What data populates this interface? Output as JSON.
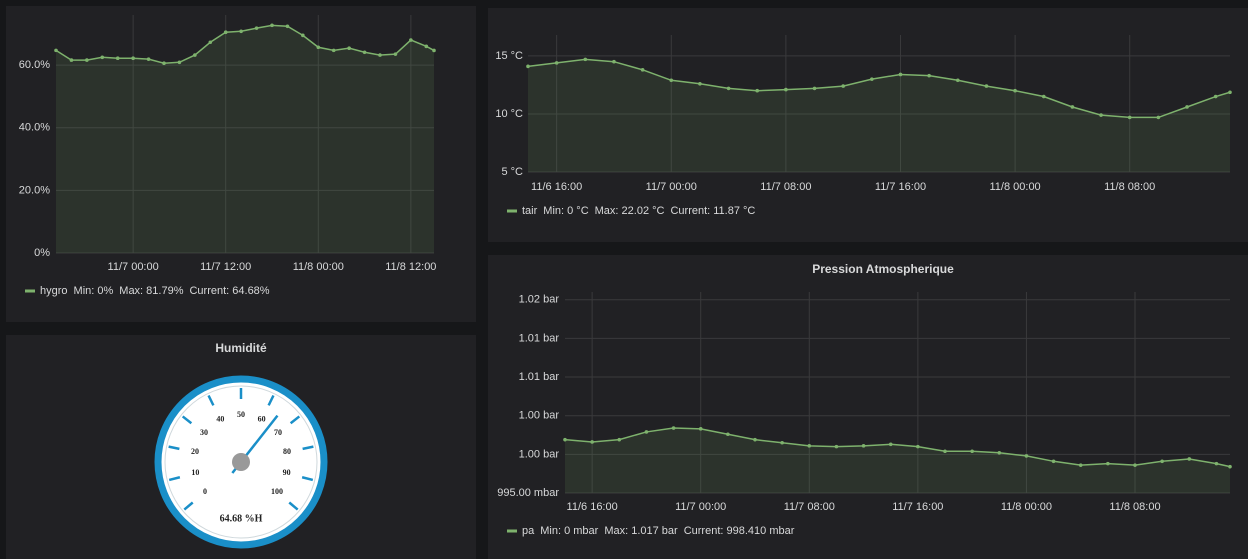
{
  "chart_data": [
    {
      "type": "line",
      "color": "#7eb26d",
      "x": [
        "11/6 14:00",
        "11/6 16:00",
        "11/6 18:00",
        "11/6 20:00",
        "11/6 22:00",
        "11/7 00:00",
        "11/7 02:00",
        "11/7 04:00",
        "11/7 06:00",
        "11/7 08:00",
        "11/7 10:00",
        "11/7 12:00",
        "11/7 14:00",
        "11/7 16:00",
        "11/7 18:00",
        "11/7 20:00",
        "11/7 22:00",
        "11/8 00:00",
        "11/8 02:00",
        "11/8 04:00",
        "11/8 06:00",
        "11/8 08:00",
        "11/8 10:00",
        "11/8 12:00",
        "11/8 14:00",
        "11/8 15:00"
      ],
      "series": [
        {
          "name": "hygro",
          "color": "#7eb26d",
          "values": [
            64.7,
            61.6,
            61.6,
            62.5,
            62.2,
            62.2,
            61.9,
            60.6,
            60.9,
            63.2,
            67.3,
            70.5,
            70.8,
            71.8,
            72.7,
            72.4,
            69.5,
            65.7,
            64.7,
            65.4,
            64.1,
            63.2,
            63.5,
            68,
            66,
            64.68
          ]
        }
      ],
      "legend_values": [
        "Min: 0%",
        "Max: 81.79%",
        "Current: 64.68%"
      ],
      "xlim": [
        "11/6 14:00",
        "11/8 15:00"
      ],
      "xticks": [
        "11/7 00:00",
        "11/7 12:00",
        "11/8 00:00",
        "11/8 12:00"
      ],
      "ylim": [
        0,
        76
      ],
      "yticks": [
        {
          "value": 0,
          "label": "0%"
        },
        {
          "value": 20,
          "label": "20.0%"
        },
        {
          "value": 40,
          "label": "40.0%"
        },
        {
          "value": 60,
          "label": "60.0%"
        }
      ],
      "grid": true
    },
    {
      "type": "line",
      "color": "#7eb26d",
      "x": [
        "11/6 14:00",
        "11/6 16:00",
        "11/6 18:00",
        "11/6 20:00",
        "11/6 22:00",
        "11/7 00:00",
        "11/7 02:00",
        "11/7 04:00",
        "11/7 06:00",
        "11/7 08:00",
        "11/7 10:00",
        "11/7 12:00",
        "11/7 14:00",
        "11/7 16:00",
        "11/7 18:00",
        "11/7 20:00",
        "11/7 22:00",
        "11/8 00:00",
        "11/8 02:00",
        "11/8 04:00",
        "11/8 06:00",
        "11/8 08:00",
        "11/8 10:00",
        "11/8 12:00",
        "11/8 14:00",
        "11/8 15:00"
      ],
      "series": [
        {
          "name": "tair",
          "color": "#7eb26d",
          "values": [
            14.1,
            14.4,
            14.7,
            14.5,
            13.8,
            12.9,
            12.6,
            12.2,
            12.0,
            12.1,
            12.2,
            12.4,
            13.0,
            13.4,
            13.3,
            12.9,
            12.4,
            12.0,
            11.5,
            10.6,
            9.9,
            9.7,
            9.7,
            10.6,
            11.5,
            11.87
          ]
        }
      ],
      "legend_values": [
        "Min: 0 °C",
        "Max: 22.02 °C",
        "Current: 11.87 °C"
      ],
      "xlim": [
        "11/6 14:00",
        "11/8 15:00"
      ],
      "xticks": [
        "11/6 16:00",
        "11/7 00:00",
        "11/7 08:00",
        "11/7 16:00",
        "11/8 00:00",
        "11/8 08:00"
      ],
      "ylim": [
        5,
        16.8
      ],
      "yticks": [
        {
          "value": 5,
          "label": "5 °C"
        },
        {
          "value": 10,
          "label": "10 °C"
        },
        {
          "value": 15,
          "label": "15 °C"
        }
      ],
      "grid": true
    },
    {
      "type": "line",
      "title": "Pression Atmospherique",
      "color": "#7eb26d",
      "x": [
        "11/6 14:00",
        "11/6 16:00",
        "11/6 18:00",
        "11/6 20:00",
        "11/6 22:00",
        "11/7 00:00",
        "11/7 02:00",
        "11/7 04:00",
        "11/7 06:00",
        "11/7 08:00",
        "11/7 10:00",
        "11/7 12:00",
        "11/7 14:00",
        "11/7 16:00",
        "11/7 18:00",
        "11/7 20:00",
        "11/7 22:00",
        "11/8 00:00",
        "11/8 02:00",
        "11/8 04:00",
        "11/8 06:00",
        "11/8 08:00",
        "11/8 10:00",
        "11/8 12:00",
        "11/8 14:00",
        "11/8 15:00"
      ],
      "series": [
        {
          "name": "pa",
          "color": "#7eb26d",
          "values": [
            1001.9,
            1001.6,
            1001.9,
            1002.9,
            1003.4,
            1003.3,
            1002.6,
            1001.9,
            1001.5,
            1001.1,
            1001.0,
            1001.1,
            1001.3,
            1001.0,
            1000.4,
            1000.4,
            1000.2,
            999.8,
            999.1,
            998.6,
            998.8,
            998.6,
            999.1,
            999.4,
            998.8,
            998.41
          ]
        }
      ],
      "legend_values": [
        "Min: 0 mbar",
        "Max: 1.017 bar",
        "Current: 998.410 mbar"
      ],
      "xlim": [
        "11/6 14:00",
        "11/8 15:00"
      ],
      "xticks": [
        "11/6 16:00",
        "11/7 00:00",
        "11/7 08:00",
        "11/7 16:00",
        "11/8 00:00",
        "11/8 08:00"
      ],
      "ylim": [
        995,
        1021
      ],
      "yticks": [
        {
          "value": 995,
          "label": "995.00 mbar"
        },
        {
          "value": 1000,
          "label": "1.00 bar"
        },
        {
          "value": 1005,
          "label": "1.00 bar"
        },
        {
          "value": 1010,
          "label": "1.01 bar"
        },
        {
          "value": 1015,
          "label": "1.01 bar"
        },
        {
          "value": 1020,
          "label": "1.02 bar"
        }
      ],
      "grid": true
    },
    {
      "type": "gauge",
      "title": "Humidité",
      "color": "#1a8fc8",
      "values": [
        64.68
      ],
      "value_labels": [
        "64.68 %H"
      ],
      "range": [
        0,
        100
      ],
      "ticks": [
        0,
        10,
        20,
        30,
        40,
        50,
        60,
        70,
        80,
        90,
        100
      ]
    }
  ]
}
